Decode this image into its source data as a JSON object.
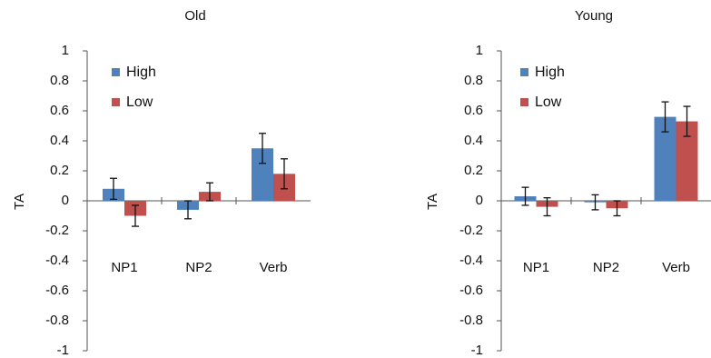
{
  "chart_data": [
    {
      "type": "bar",
      "title": "Old",
      "xlabel": "",
      "ylabel": "TA",
      "ylim": [
        -1,
        1
      ],
      "yticks": [
        "1",
        "0.8",
        "0.6",
        "0.4",
        "0.2",
        "0",
        "-0.2",
        "-0.4",
        "-0.6",
        "-0.8",
        "-1"
      ],
      "categories": [
        "NP1",
        "NP2",
        "Verb"
      ],
      "legend_position": "top-left",
      "series": [
        {
          "name": "High",
          "color": "#4f81bd",
          "values": [
            0.08,
            -0.06,
            0.35
          ],
          "errors": [
            0.07,
            0.06,
            0.1
          ]
        },
        {
          "name": "Low",
          "color": "#c0504d",
          "values": [
            -0.1,
            0.06,
            0.18
          ],
          "errors": [
            0.07,
            0.06,
            0.1
          ]
        }
      ]
    },
    {
      "type": "bar",
      "title": "Young",
      "xlabel": "",
      "ylabel": "TA",
      "ylim": [
        -1,
        1
      ],
      "yticks": [
        "1",
        "0.8",
        "0.6",
        "0.4",
        "0.2",
        "0",
        "-0.2",
        "-0.4",
        "-0.6",
        "-0.8",
        "-1"
      ],
      "categories": [
        "NP1",
        "NP2",
        "Verb"
      ],
      "legend_position": "top-left",
      "series": [
        {
          "name": "High",
          "color": "#4f81bd",
          "values": [
            0.03,
            -0.01,
            0.56
          ],
          "errors": [
            0.06,
            0.05,
            0.1
          ]
        },
        {
          "name": "Low",
          "color": "#c0504d",
          "values": [
            -0.04,
            -0.05,
            0.53
          ],
          "errors": [
            0.06,
            0.05,
            0.1
          ]
        }
      ]
    }
  ]
}
